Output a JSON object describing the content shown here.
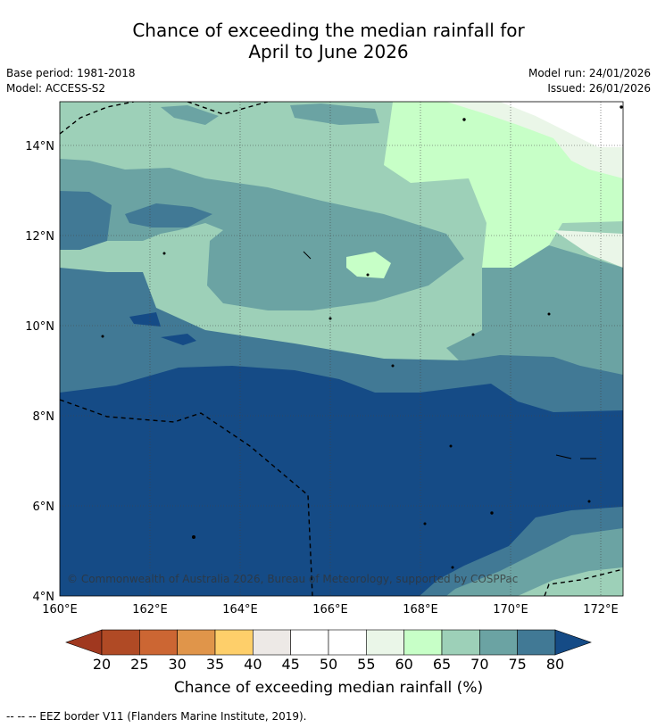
{
  "title_line1": "Chance of exceeding the median rainfall for",
  "title_line2": "April to June 2026",
  "base_period": "Base period: 1981-2018",
  "model": "Model: ACCESS-S2",
  "model_run": "Model run: 24/01/2026",
  "issued": "Issued: 26/01/2026",
  "copyright": "© Commonwealth of Australia 2026, Bureau of Meteorology, supported by COSPPac",
  "lat_labels": [
    "14°N",
    "12°N",
    "10°N",
    "8°N",
    "6°N",
    "4°N"
  ],
  "lon_labels": [
    "160°E",
    "162°E",
    "164°E",
    "166°E",
    "168°E",
    "170°E",
    "172°E"
  ],
  "colorbar": {
    "ticks": [
      "20",
      "25",
      "30",
      "35",
      "40",
      "45",
      "50",
      "55",
      "60",
      "65",
      "70",
      "75",
      "80"
    ],
    "colors": [
      "#b04a25",
      "#cc6633",
      "#e0954a",
      "#fecf6a",
      "#ede9e6",
      "#ffffff",
      "#ffffff",
      "#eaf6e8",
      "#c7ffc7",
      "#9dd0b8",
      "#6ba3a3",
      "#417995"
    ],
    "under_color": "#a0381f",
    "over_color": "#154b86",
    "label": "Chance of exceeding median rainfall (%)"
  },
  "legend_footer": "--  --  -- EEZ border V11 (Flanders Marine Institute, 2019).",
  "map_colors": {
    "c80": "#154b86",
    "c75": "#417995",
    "c70": "#6ba3a3",
    "c65": "#9dd0b8",
    "c60": "#c7ffc7",
    "c55": "#eaf6e8",
    "c50": "#ffffff"
  }
}
